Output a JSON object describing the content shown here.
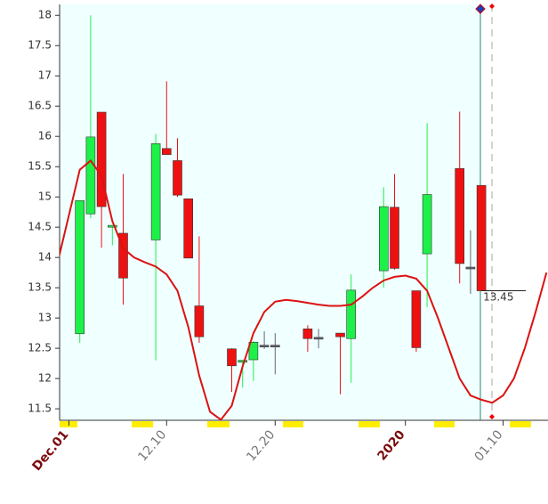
{
  "chart_data": {
    "type": "candlestick",
    "categories": [
      null,
      "Dec.01",
      null,
      null,
      null,
      null,
      null,
      null,
      null,
      null,
      "12.10",
      null,
      null,
      null,
      null,
      null,
      null,
      null,
      null,
      null,
      "12.20",
      null,
      null,
      null,
      null,
      null,
      null,
      null,
      null,
      null,
      null,
      null,
      "2020",
      null,
      null,
      null,
      null,
      null,
      null,
      null,
      null,
      "01.10",
      null,
      null,
      null,
      null
    ],
    "open": [
      null,
      null,
      12.74,
      14.72,
      16.4,
      14.5,
      14.4,
      null,
      null,
      14.29,
      15.8,
      15.6,
      14.97,
      13.2,
      null,
      null,
      12.49,
      12.27,
      12.31,
      12.55,
      12.55,
      null,
      null,
      12.82,
      12.68,
      null,
      12.75,
      12.66,
      null,
      null,
      13.78,
      14.83,
      null,
      13.45,
      14.06,
      null,
      null,
      15.47,
      13.84,
      15.19,
      null,
      null,
      null,
      null,
      null,
      null
    ],
    "high": [
      null,
      null,
      14.94,
      18.0,
      16.4,
      14.5,
      15.38,
      null,
      null,
      16.04,
      16.91,
      15.97,
      14.97,
      14.35,
      null,
      null,
      12.5,
      12.3,
      12.62,
      12.78,
      12.75,
      null,
      null,
      12.88,
      12.82,
      null,
      12.75,
      13.72,
      null,
      null,
      15.16,
      15.38,
      null,
      13.45,
      16.22,
      null,
      null,
      16.41,
      14.45,
      15.19,
      null,
      null,
      null,
      null,
      null,
      null
    ],
    "low": [
      null,
      null,
      12.59,
      14.65,
      14.16,
      14.2,
      13.22,
      null,
      null,
      12.3,
      15.7,
      15.0,
      13.99,
      12.59,
      null,
      null,
      11.78,
      11.85,
      11.96,
      12.49,
      12.07,
      null,
      null,
      12.44,
      12.5,
      null,
      11.74,
      11.93,
      null,
      null,
      13.5,
      13.8,
      null,
      12.44,
      13.18,
      null,
      null,
      13.57,
      13.4,
      13.45,
      null,
      null,
      null,
      null,
      null,
      null
    ],
    "close": [
      null,
      null,
      14.94,
      15.99,
      14.84,
      14.53,
      13.66,
      null,
      null,
      15.88,
      15.7,
      15.03,
      13.99,
      12.69,
      null,
      null,
      12.21,
      12.3,
      12.6,
      12.53,
      12.54,
      null,
      null,
      12.66,
      12.67,
      null,
      12.69,
      13.46,
      null,
      null,
      14.84,
      13.82,
      null,
      12.51,
      15.04,
      null,
      null,
      13.9,
      13.82,
      13.45,
      null,
      null,
      null,
      null,
      null,
      null
    ],
    "up_color": "#1ef04a",
    "down_color": "#ee1111",
    "ma": {
      "color": "#dd1111",
      "values": [
        13.95,
        14.7,
        15.45,
        15.6,
        15.35,
        14.6,
        14.15,
        14.0,
        13.92,
        13.85,
        13.72,
        13.45,
        12.85,
        12.05,
        11.45,
        11.32,
        11.55,
        12.2,
        12.75,
        13.1,
        13.27,
        13.3,
        13.28,
        13.25,
        13.22,
        13.2,
        13.2,
        13.22,
        13.35,
        13.5,
        13.62,
        13.68,
        13.7,
        13.65,
        13.45,
        13.0,
        12.5,
        12.0,
        11.72,
        11.65,
        11.6,
        11.72,
        12.0,
        12.5,
        13.1,
        13.75
      ]
    },
    "annotation": {
      "label": "13.45",
      "value": 13.45
    },
    "ylim": [
      11.31,
      18.18
    ],
    "yticks": [
      11.5,
      12,
      12.5,
      13,
      13.5,
      14,
      14.5,
      15,
      15.5,
      16,
      16.5,
      17,
      17.5,
      18
    ]
  }
}
